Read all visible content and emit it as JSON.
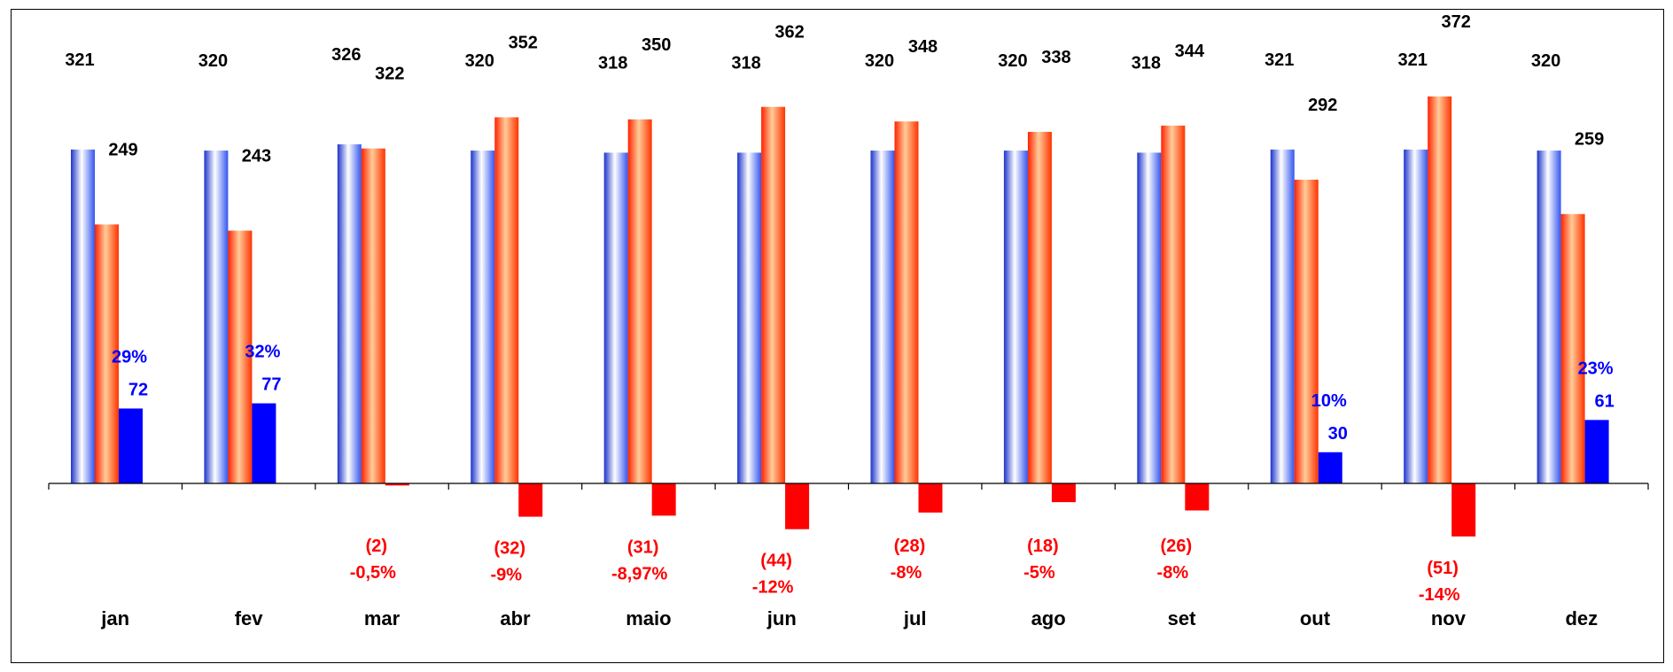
{
  "chart_data": {
    "type": "bar",
    "categories": [
      "jan",
      "fev",
      "mar",
      "abr",
      "maio",
      "jun",
      "jul",
      "ago",
      "set",
      "out",
      "nov",
      "dez"
    ],
    "series": [
      {
        "values": [
          321,
          320,
          326,
          320,
          318,
          318,
          320,
          320,
          318,
          321,
          321,
          320
        ],
        "color": "#3366ff"
      },
      {
        "values": [
          249,
          243,
          322,
          352,
          350,
          362,
          348,
          338,
          344,
          292,
          372,
          259
        ],
        "color": "#ff3300"
      },
      {
        "values": [
          72,
          77,
          -2,
          -32,
          -31,
          -44,
          -28,
          -18,
          -26,
          30,
          -51,
          61
        ],
        "labels": [
          "72",
          "77",
          "(2)",
          "(32)",
          "(31)",
          "(44)",
          "(28)",
          "(18)",
          "(26)",
          "30",
          "(51)",
          "61"
        ],
        "pct_labels": [
          "29%",
          "32%",
          "-0,5%",
          "-9%",
          "-8,97%",
          "-12%",
          "-8%",
          "-5%",
          "-8%",
          "10%",
          "-14%",
          "23%"
        ],
        "positive_color": "#0000ff",
        "negative_color": "#ff0000"
      }
    ],
    "ylim": [
      -70,
      380
    ],
    "grid": false,
    "legend": "none"
  }
}
